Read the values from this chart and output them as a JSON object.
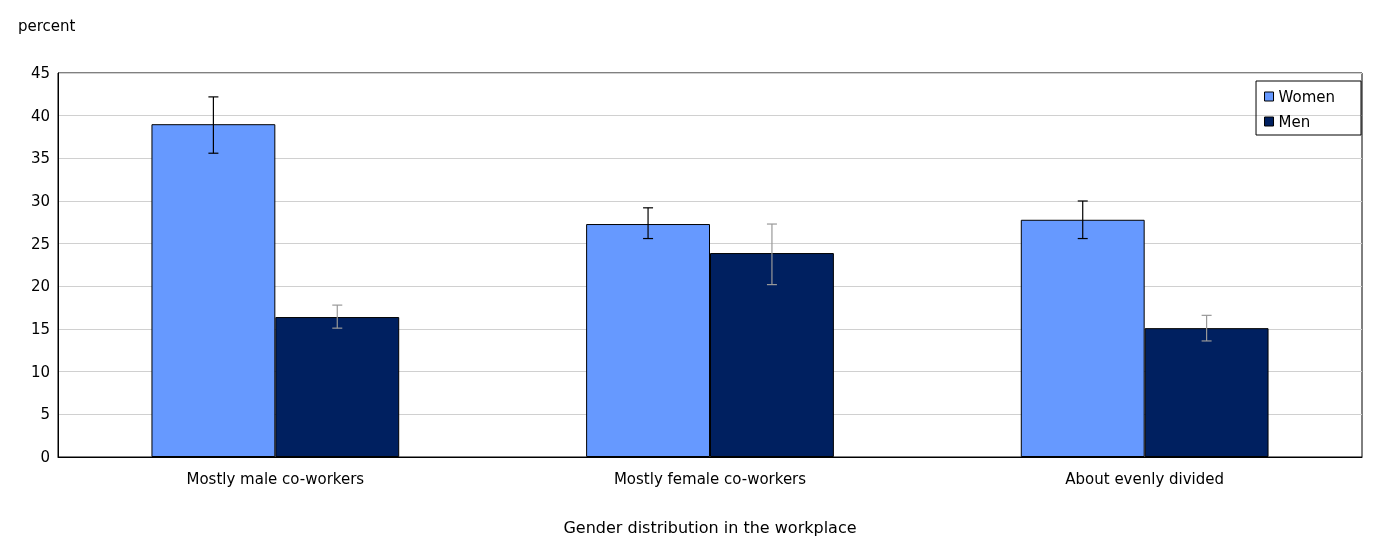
{
  "chart_data": {
    "type": "bar",
    "xlabel": "Gender distribution in the workplace",
    "ylabel": "percent",
    "categories": [
      "Mostly male co-workers",
      "Mostly female co-workers",
      "About evenly divided"
    ],
    "series": [
      {
        "name": "Women",
        "color": "#6699ff",
        "values": [
          39,
          27.3,
          27.8
        ],
        "errors": [
          [
            35.6,
            42.2
          ],
          [
            25.6,
            29.2
          ],
          [
            25.6,
            30
          ]
        ]
      },
      {
        "name": "Men",
        "color": "#002060",
        "values": [
          16.4,
          23.9,
          15.1
        ],
        "errors": [
          [
            15.1,
            17.8
          ],
          [
            20.2,
            27.3
          ],
          [
            13.6,
            16.6
          ]
        ]
      }
    ],
    "ylim": [
      0,
      45
    ],
    "yticks": [
      0,
      5,
      10,
      15,
      20,
      25,
      30,
      35,
      40,
      45
    ],
    "grid": "y",
    "legend": "top right"
  }
}
